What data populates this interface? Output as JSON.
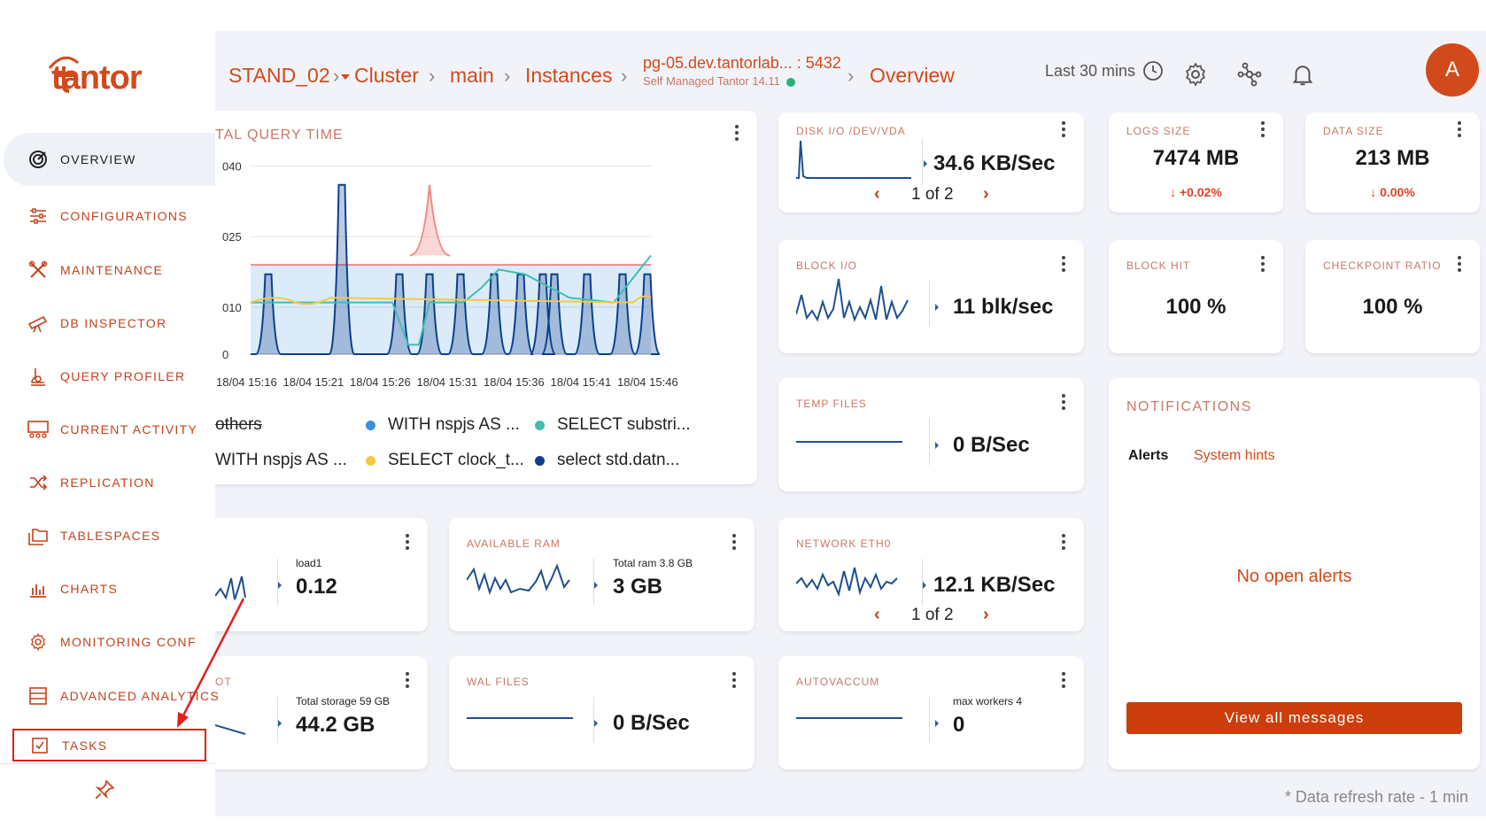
{
  "brand": {
    "logo_text": "tantor",
    "accent": "#d24a1b"
  },
  "breadcrumb": {
    "stand": "STAND_02",
    "cluster": "Cluster",
    "main": "main",
    "instances": "Instances",
    "host": "pg-05.dev.tantorlab... : 5432",
    "host_sub": "Self Managed Tantor 14.11",
    "page": "Overview"
  },
  "header": {
    "time_range": "Last 30 mins",
    "avatar_letter": "A"
  },
  "sidebar": {
    "items": [
      {
        "label": "OVERVIEW",
        "icon": "overview-gauge-icon"
      },
      {
        "label": "CONFIGURATIONS",
        "icon": "sliders-icon"
      },
      {
        "label": "MAINTENANCE",
        "icon": "wrench-icon"
      },
      {
        "label": "DB INSPECTOR",
        "icon": "telescope-icon"
      },
      {
        "label": "QUERY PROFILER",
        "icon": "profiler-icon"
      },
      {
        "label": "CURRENT ACTIVITY",
        "icon": "activity-icon"
      },
      {
        "label": "REPLICATION",
        "icon": "shuffle-icon"
      },
      {
        "label": "TABLESPACES",
        "icon": "folders-icon"
      },
      {
        "label": "CHARTS",
        "icon": "bar-chart-icon"
      },
      {
        "label": "MONITORING CONF",
        "icon": "gear-icon"
      },
      {
        "label": "ADVANCED ANALYTICS",
        "icon": "database-icon"
      },
      {
        "label": "TASKS",
        "icon": "task-check-icon"
      }
    ]
  },
  "query_chart": {
    "title": "TAL QUERY TIME",
    "legend": [
      "others",
      "WITH nspjs AS ...",
      "SELECT substri...",
      "WITH nspjs AS ...",
      "SELECT clock_t...",
      "select std.datn..."
    ],
    "legend_colors": [
      "#ffffff",
      "#3a8fe0",
      "#3fbfb0",
      "#f08a8a",
      "#f5c842",
      "#0d3f8f"
    ]
  },
  "chart_data": {
    "type": "area",
    "title": "TAL QUERY TIME",
    "x": [
      "18/04 15:16",
      "18/04 15:21",
      "18/04 15:26",
      "18/04 15:31",
      "18/04 15:36",
      "18/04 15:41",
      "18/04 15:46"
    ],
    "y_ticks": [
      "040",
      "025",
      "010",
      "0"
    ],
    "series": [
      {
        "name": "WITH nspjs AS ...",
        "color": "#3a8fe0",
        "values": [
          19,
          19,
          19,
          19,
          19,
          19,
          19
        ]
      },
      {
        "name": "SELECT substri...",
        "color": "#3fbfb0",
        "values": [
          11,
          11,
          2,
          11,
          11,
          11,
          21
        ]
      },
      {
        "name": "WITH nspjs AS ...",
        "color": "#f08a8a",
        "values": [
          21,
          21,
          36,
          21,
          21,
          21,
          21
        ]
      },
      {
        "name": "SELECT clock_t...",
        "color": "#f5c842",
        "values": [
          11,
          11,
          11,
          11,
          11,
          11,
          12
        ]
      },
      {
        "name": "select std.datn...",
        "color": "#0d3f8f",
        "values": [
          17,
          35,
          17,
          17,
          17,
          17,
          17
        ]
      }
    ]
  },
  "cards": {
    "disk_io": {
      "title": "DISK I/O /DEV/VDA",
      "value": "34.6 KB/Sec",
      "pager": "1 of 2"
    },
    "logs_size": {
      "title": "LOGS SIZE",
      "value": "7474 MB",
      "delta": "↓ +0.02%"
    },
    "data_size": {
      "title": "DATA SIZE",
      "value": "213 MB",
      "delta": "↓ 0.00%"
    },
    "block_io": {
      "title": "BLOCK I/O",
      "value": "11 blk/sec"
    },
    "block_hit": {
      "title": "BLOCK HIT",
      "value": "100 %"
    },
    "checkpoint": {
      "title": "CHECKPOINT RATIO",
      "value": "100 %"
    },
    "temp_files": {
      "title": "TEMP FILES",
      "value": "0 B/Sec"
    },
    "load": {
      "note": "load1",
      "value": "0.12"
    },
    "ram": {
      "title": "AVAILABLE RAM",
      "note": "Total ram 3.8 GB",
      "value": "3 GB"
    },
    "network": {
      "title": "NETWORK ETH0",
      "value": "12.1 KB/Sec",
      "pager": "1 of 2"
    },
    "storage": {
      "title": "OT",
      "note": "Total storage 59 GB",
      "value": "44.2 GB"
    },
    "wal": {
      "title": "WAL FILES",
      "value": "0 B/Sec"
    },
    "autovacuum": {
      "title": "AUTOVACCUM",
      "note": "max workers 4",
      "value": "0"
    }
  },
  "notifications": {
    "title": "NOTIFICATIONS",
    "tab_alerts": "Alerts",
    "tab_hints": "System hints",
    "empty": "No open alerts",
    "button": "View all messages"
  },
  "footer": {
    "refresh": "* Data refresh rate - 1 min"
  }
}
